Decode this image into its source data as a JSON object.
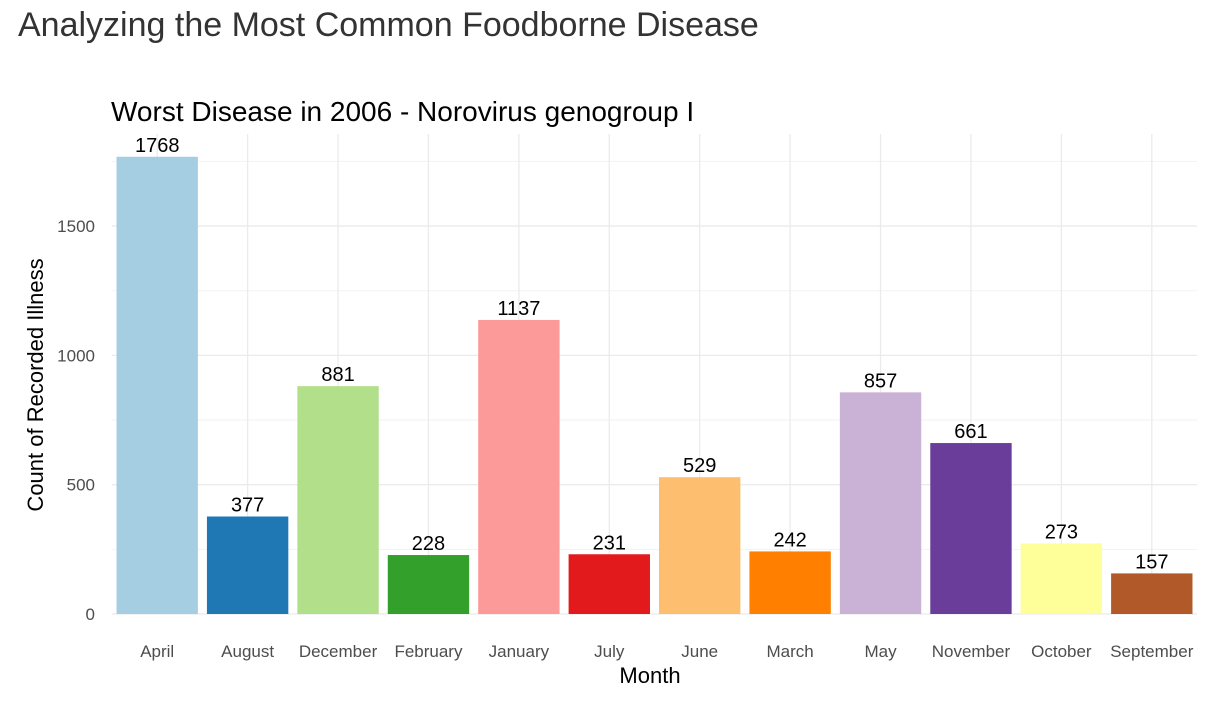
{
  "page": {
    "title": "Analyzing the Most Common Foodborne Disease"
  },
  "chart_data": {
    "type": "bar",
    "title": "Worst Disease in 2006 - Norovirus genogroup I",
    "xlabel": "Month",
    "ylabel": "Count of Recorded Illness",
    "categories": [
      "April",
      "August",
      "December",
      "February",
      "January",
      "July",
      "June",
      "March",
      "May",
      "November",
      "October",
      "September"
    ],
    "values": [
      1768,
      377,
      881,
      228,
      1137,
      231,
      529,
      242,
      857,
      661,
      273,
      157
    ],
    "colors": [
      "#A6CEE3",
      "#1F78B4",
      "#B2DF8A",
      "#33A02C",
      "#FB9A99",
      "#E31A1C",
      "#FDBF6F",
      "#FF7F00",
      "#CAB2D6",
      "#6A3D9A",
      "#FFFF99",
      "#B15928"
    ],
    "ylim": [
      0,
      1856
    ],
    "yticks": [
      0,
      500,
      1000,
      1500
    ],
    "grid": true,
    "legend": "none"
  }
}
